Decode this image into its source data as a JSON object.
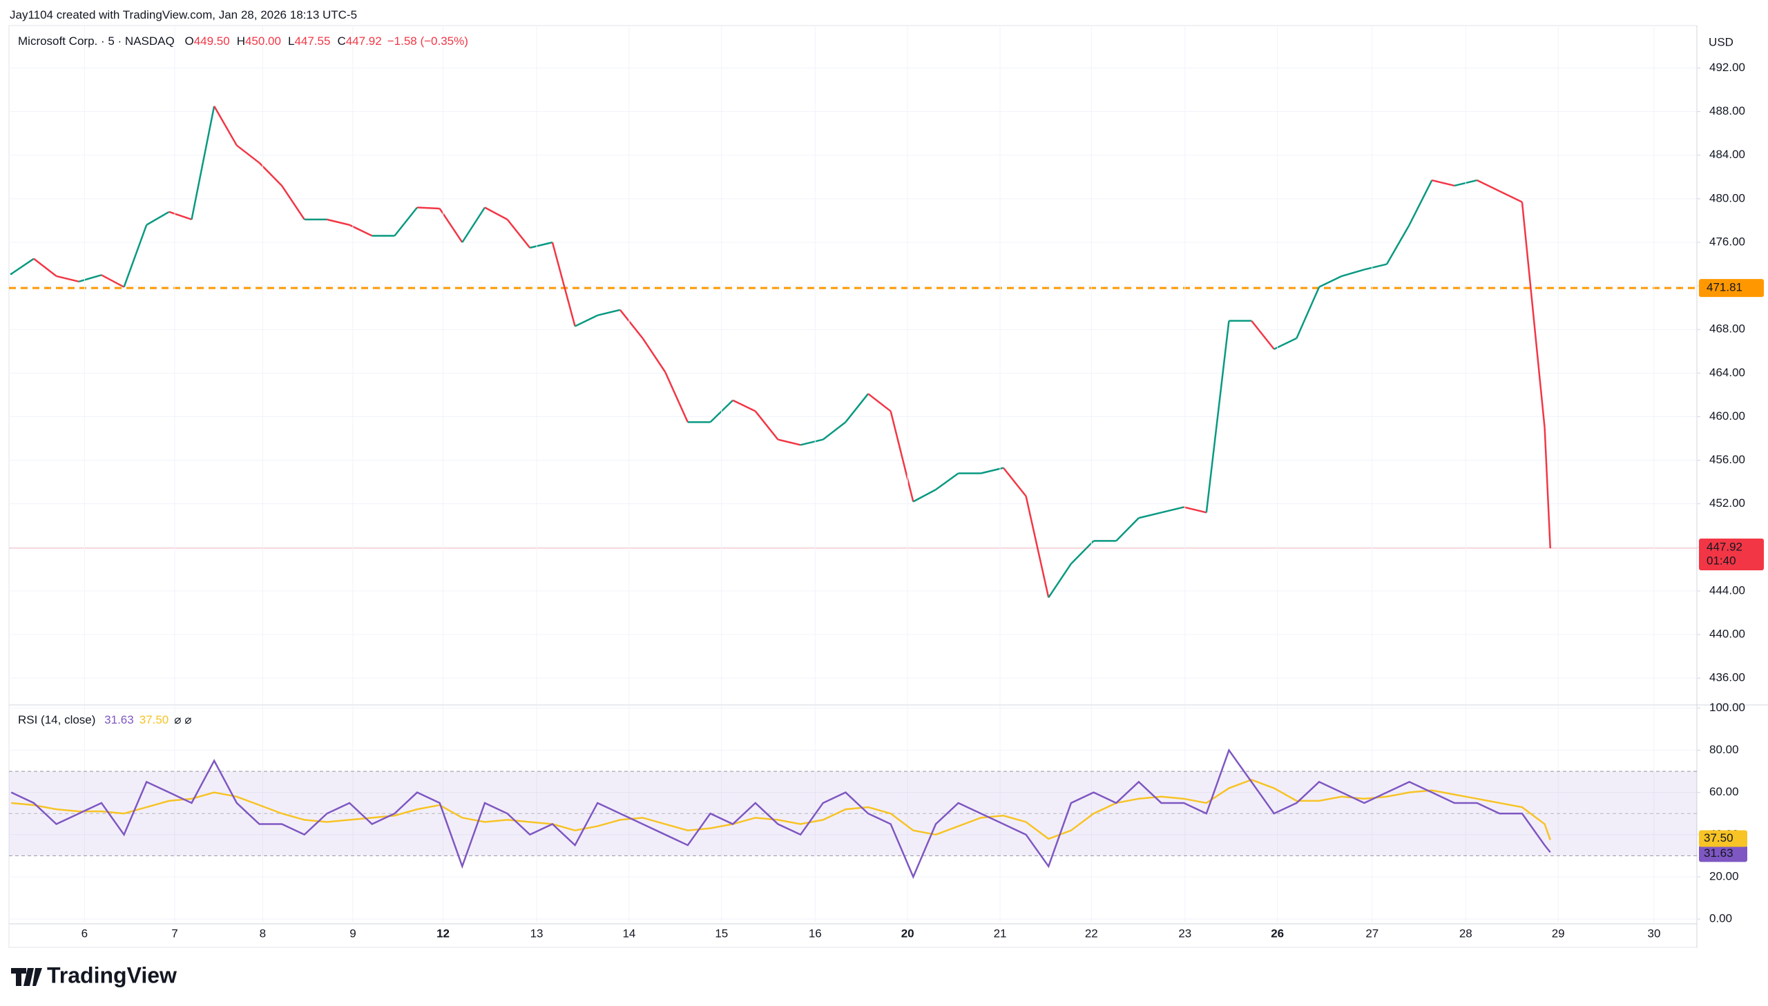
{
  "header": {
    "credit": "Jay1104 created with TradingView.com, Jan 28, 2026 18:13 UTC-5",
    "symbol": "Microsoft Corp. · 5 · NASDAQ",
    "ohlc": [
      {
        "key": "O",
        "text": "449.50"
      },
      {
        "key": "H",
        "text": "450.00"
      },
      {
        "key": "L",
        "text": "447.55"
      },
      {
        "key": "C",
        "text": "447.92"
      }
    ],
    "change": "−1.58 (−0.35%)",
    "currency": "USD"
  },
  "chart_data": [
    {
      "type": "line",
      "up_color": "#089981",
      "down_color": "#f23645",
      "x": [
        0,
        1,
        2,
        3,
        4,
        5,
        6,
        7,
        8,
        9,
        10,
        11,
        12,
        13,
        14,
        15,
        16,
        17,
        18,
        19,
        20,
        21,
        22,
        23,
        24,
        25,
        26,
        27,
        28,
        29,
        30,
        31,
        32,
        33,
        34,
        35,
        36,
        37,
        38,
        39,
        40,
        41,
        42,
        43,
        44,
        45,
        46,
        47,
        48,
        49,
        50,
        51,
        52,
        53,
        54,
        55,
        56,
        57,
        58,
        59,
        60,
        61,
        62,
        63,
        64,
        65,
        66,
        67,
        68,
        68.25
      ],
      "values": [
        473.1,
        474.5,
        472.9,
        472.4,
        473,
        471.9,
        477.6,
        478.8,
        478.1,
        488.5,
        484.9,
        483.3,
        481.2,
        478.1,
        478.1,
        477.6,
        476.6,
        476.6,
        479.2,
        479.1,
        476,
        479.2,
        478.1,
        475.5,
        476,
        468.3,
        469.3,
        469.8,
        467.2,
        464.1,
        459.5,
        459.5,
        461.5,
        460.5,
        457.9,
        457.4,
        457.9,
        459.5,
        462.1,
        460.5,
        452.2,
        453.3,
        454.8,
        454.8,
        455.3,
        452.7,
        443.4,
        446.5,
        448.6,
        448.6,
        450.7,
        451.2,
        451.7,
        451.2,
        468.8,
        468.8,
        466.2,
        467.2,
        471.9,
        472.9,
        473.5,
        474,
        477.6,
        481.7,
        481.2,
        481.7,
        480.7,
        479.7,
        459,
        447.92
      ],
      "xlim": [
        -0.1,
        74.75
      ],
      "ylim": [
        433.6,
        495.9
      ],
      "yticks": [
        {
          "value": 436,
          "label": "436.00"
        },
        {
          "value": 440,
          "label": "440.00"
        },
        {
          "value": 444,
          "label": "444.00"
        },
        {
          "value": 448,
          "label": "448.00"
        },
        {
          "value": 452,
          "label": "452.00"
        },
        {
          "value": 456,
          "label": "456.00"
        },
        {
          "value": 460,
          "label": "460.00"
        },
        {
          "value": 464,
          "label": "464.00"
        },
        {
          "value": 468,
          "label": "468.00"
        },
        {
          "value": 472,
          "label": "472.00"
        },
        {
          "value": 476,
          "label": "476.00"
        },
        {
          "value": 480,
          "label": "480.00"
        },
        {
          "value": 484,
          "label": "484.00"
        },
        {
          "value": 488,
          "label": "488.00"
        },
        {
          "value": 492,
          "label": "492.00"
        }
      ],
      "hline": {
        "value": 471.81,
        "color": "#ff9800"
      },
      "last_price": {
        "value": 447.92,
        "time": "01:40",
        "color": "#f23645"
      },
      "grid": true
    },
    {
      "type": "line",
      "title": "RSI (14, close)",
      "flags": "⌀ ⌀",
      "x": [
        0,
        1,
        2,
        3,
        4,
        5,
        6,
        7,
        8,
        9,
        10,
        11,
        12,
        13,
        14,
        15,
        16,
        17,
        18,
        19,
        20,
        21,
        22,
        23,
        24,
        25,
        26,
        27,
        28,
        29,
        30,
        31,
        32,
        33,
        34,
        35,
        36,
        37,
        38,
        39,
        40,
        41,
        42,
        43,
        44,
        45,
        46,
        47,
        48,
        49,
        50,
        51,
        52,
        53,
        54,
        55,
        56,
        57,
        58,
        59,
        60,
        61,
        62,
        63,
        64,
        65,
        66,
        67,
        68,
        68.25
      ],
      "series": [
        {
          "color": "#7e57c2",
          "values": [
            60,
            55,
            45,
            50,
            55,
            40,
            65,
            60,
            55,
            75,
            55,
            45,
            45,
            40,
            50,
            55,
            45,
            50,
            60,
            55,
            25,
            55,
            50,
            40,
            45,
            35,
            55,
            50,
            45,
            40,
            35,
            50,
            45,
            55,
            45,
            40,
            55,
            60,
            50,
            45,
            20,
            45,
            55,
            50,
            45,
            40,
            25,
            55,
            60,
            55,
            65,
            55,
            55,
            50,
            80,
            65,
            50,
            55,
            65,
            60,
            55,
            60,
            65,
            60,
            55,
            55,
            50,
            50,
            35,
            31.63
          ],
          "last": 31.63
        },
        {
          "color": "#f7c325",
          "values": [
            55,
            54,
            52,
            51,
            51,
            50,
            53,
            56,
            57,
            60,
            58,
            54,
            50,
            47,
            46,
            47,
            48,
            49,
            52,
            54,
            48,
            46,
            47,
            46,
            45,
            42,
            44,
            47,
            48,
            45,
            42,
            43,
            45,
            48,
            47,
            45,
            47,
            52,
            53,
            50,
            42,
            40,
            44,
            48,
            49,
            46,
            38,
            42,
            50,
            55,
            57,
            58,
            57,
            55,
            62,
            66,
            62,
            56,
            56,
            58,
            57,
            58,
            60,
            61,
            59,
            57,
            55,
            53,
            45,
            37.5
          ],
          "last": {
            "value": 37.5,
            "label": "37.50"
          }
        }
      ],
      "band": [
        30,
        70
      ],
      "midline": 50,
      "xlim": [
        -0.1,
        74.75
      ],
      "ylim": [
        -1.6,
        101.1
      ],
      "yticks": [
        {
          "value": 0,
          "label": "0.00"
        },
        {
          "value": 20,
          "label": "20.00"
        },
        {
          "value": 40,
          "label": "40.00"
        },
        {
          "value": 60,
          "label": "60.00"
        },
        {
          "value": 80,
          "label": "80.00"
        },
        {
          "value": 100,
          "label": "100.00"
        }
      ],
      "xticks": [
        {
          "value": 3.25,
          "label": "6"
        },
        {
          "value": 7.25,
          "label": "7"
        },
        {
          "value": 11.15,
          "label": "8"
        },
        {
          "value": 15.15,
          "label": "9"
        },
        {
          "value": 19.15,
          "label": "12",
          "bold": true
        },
        {
          "value": 23.3,
          "label": "13"
        },
        {
          "value": 27.4,
          "label": "14"
        },
        {
          "value": 31.5,
          "label": "15"
        },
        {
          "value": 35.65,
          "label": "16"
        },
        {
          "value": 39.75,
          "label": "20",
          "bold": true
        },
        {
          "value": 43.85,
          "label": "21"
        },
        {
          "value": 47.9,
          "label": "22"
        },
        {
          "value": 52.05,
          "label": "23"
        },
        {
          "value": 56.15,
          "label": "26",
          "bold": true
        },
        {
          "value": 60.35,
          "label": "27"
        },
        {
          "value": 64.5,
          "label": "28"
        },
        {
          "value": 68.6,
          "label": "29"
        },
        {
          "value": 72.85,
          "label": "30"
        }
      ]
    }
  ],
  "footer": {
    "brand": "TradingView"
  }
}
